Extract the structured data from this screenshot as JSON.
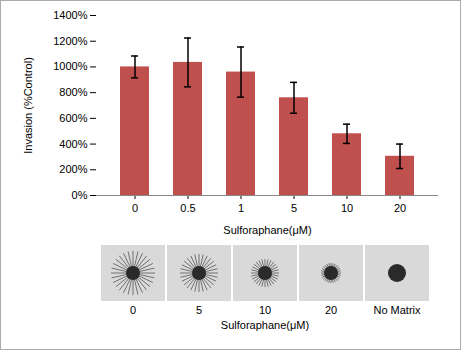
{
  "chart_data": {
    "type": "bar",
    "categories": [
      "0",
      "0.5",
      "1",
      "5",
      "10",
      "20"
    ],
    "values": [
      1000,
      1035,
      960,
      760,
      480,
      305
    ],
    "errors": [
      85,
      190,
      195,
      120,
      75,
      95
    ],
    "color": "#c0504d",
    "x_label": "Sulforaphane(μM)",
    "y_label": "Invasion (%Control)",
    "ylim": [
      0,
      1400
    ],
    "yticks": [
      {
        "value": 0,
        "label": "0%"
      },
      {
        "value": 200,
        "label": "200%"
      },
      {
        "value": 400,
        "label": "400%"
      },
      {
        "value": 600,
        "label": "600%"
      },
      {
        "value": 800,
        "label": "800%"
      },
      {
        "value": 1000,
        "label": "1000%"
      },
      {
        "value": 1200,
        "label": "1200%"
      },
      {
        "value": 1400,
        "label": "1400%"
      }
    ],
    "grid": false
  },
  "image_strip": {
    "labels": [
      "0",
      "5",
      "10",
      "20",
      "No Matrix"
    ],
    "caption": "Sulforaphane(μM)"
  }
}
